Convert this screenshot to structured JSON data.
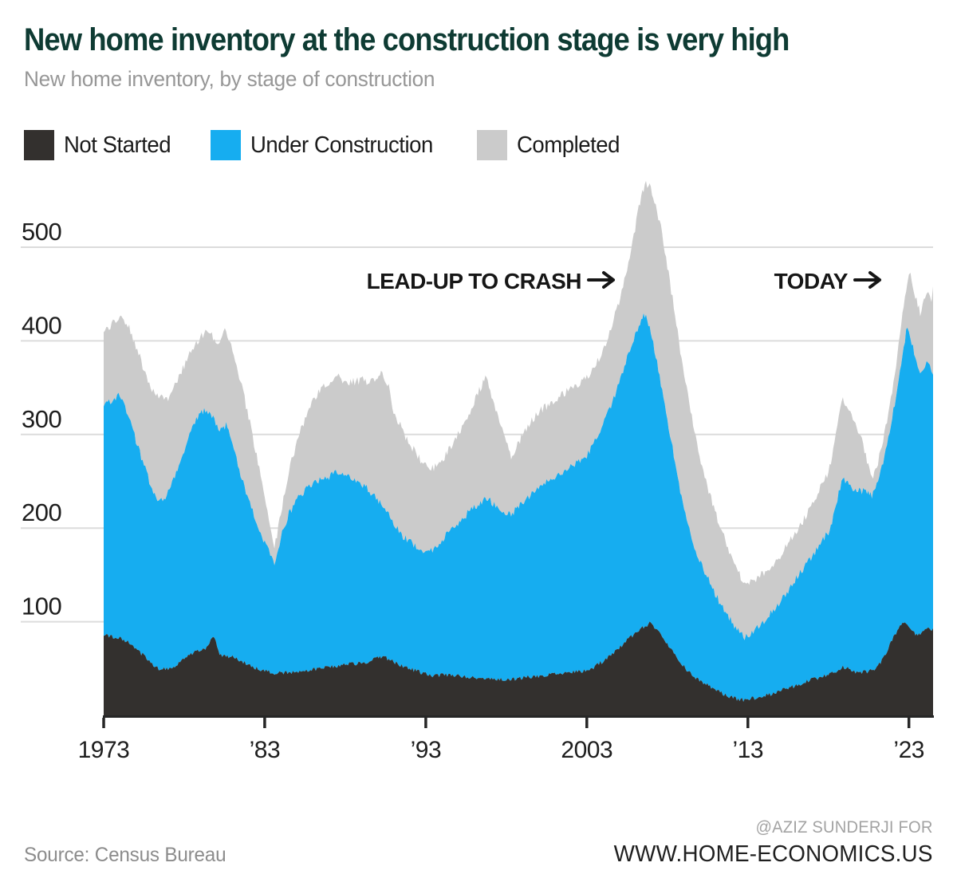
{
  "header": {
    "title": "New home inventory at the construction stage is very high",
    "subtitle": "New home inventory, by stage of construction"
  },
  "legend": [
    {
      "label": "Not Started",
      "color": "#33302E"
    },
    {
      "label": "Under Construction",
      "color": "#16ADF0"
    },
    {
      "label": "Completed",
      "color": "#CBCBCB"
    }
  ],
  "annotations": [
    {
      "text": "LEAD-UP TO CRASH",
      "icon": "arrow-right"
    },
    {
      "text": "TODAY",
      "icon": "arrow-right"
    }
  ],
  "footer": {
    "source": "Source: Census Bureau",
    "credit_line1": "@AZIZ SUNDERJI FOR",
    "credit_line2": "WWW.HOME-ECONOMICS.US"
  },
  "chart_data": {
    "type": "area",
    "stacked": true,
    "title": "New home inventory, by stage of construction",
    "xlabel": "",
    "ylabel": "",
    "unit": "thousands of homes",
    "x_range": [
      1973,
      2024.5
    ],
    "ylim": [
      0,
      575
    ],
    "grid": true,
    "legend_position": "top-left",
    "yticks": [
      100,
      200,
      300,
      400,
      500
    ],
    "xticks": [
      {
        "year": 1973,
        "label": "1973"
      },
      {
        "year": 1983,
        "label": "’83"
      },
      {
        "year": 1993,
        "label": "’93"
      },
      {
        "year": 2003,
        "label": "2003"
      },
      {
        "year": 2013,
        "label": "’13"
      },
      {
        "year": 2023,
        "label": "’23"
      }
    ],
    "series_names": [
      "Not Started",
      "Under Construction",
      "Completed"
    ],
    "colors": {
      "not_started": "#33302E",
      "under_construction": "#16ADF0",
      "completed": "#CBCBCB",
      "gridline": "#DCDCDC",
      "axis": "#262626"
    },
    "monthly_noise": {
      "not_started": 2.2,
      "under_construction": 4.0,
      "completed": 4.5
    },
    "points_format": [
      "year",
      "not_started",
      "under_construction",
      "completed"
    ],
    "points": [
      [
        1973.0,
        85,
        245,
        79
      ],
      [
        1973.5,
        84,
        252,
        82
      ],
      [
        1974.0,
        82,
        262,
        84
      ],
      [
        1974.5,
        78,
        245,
        95
      ],
      [
        1975.0,
        70,
        224,
        100
      ],
      [
        1975.5,
        64,
        203,
        103
      ],
      [
        1976.0,
        55,
        187,
        105
      ],
      [
        1976.5,
        49,
        179,
        110
      ],
      [
        1977.0,
        50,
        188,
        102
      ],
      [
        1977.5,
        54,
        206,
        96
      ],
      [
        1978.0,
        60,
        224,
        90
      ],
      [
        1978.5,
        66,
        241,
        84
      ],
      [
        1979.0,
        70,
        253,
        81
      ],
      [
        1979.4,
        72,
        255,
        84
      ],
      [
        1979.8,
        85,
        233,
        86
      ],
      [
        1980.2,
        66,
        239,
        93
      ],
      [
        1980.6,
        62,
        248,
        102
      ],
      [
        1981.0,
        64,
        224,
        103
      ],
      [
        1981.5,
        58,
        200,
        98
      ],
      [
        1982.0,
        54,
        177,
        88
      ],
      [
        1982.5,
        50,
        155,
        72
      ],
      [
        1983.0,
        47,
        136,
        48
      ],
      [
        1983.6,
        45,
        119,
        13
      ],
      [
        1984.0,
        45,
        145,
        26
      ],
      [
        1984.5,
        46,
        169,
        46
      ],
      [
        1985.0,
        46,
        185,
        62
      ],
      [
        1985.5,
        47,
        194,
        76
      ],
      [
        1986.0,
        49,
        199,
        89
      ],
      [
        1986.5,
        50,
        202,
        97
      ],
      [
        1987.0,
        52,
        203,
        101
      ],
      [
        1987.5,
        53,
        206,
        103
      ],
      [
        1988.0,
        54,
        202,
        100
      ],
      [
        1988.5,
        55,
        198,
        103
      ],
      [
        1989.0,
        56,
        192,
        110
      ],
      [
        1989.5,
        58,
        182,
        117
      ],
      [
        1990.0,
        62,
        169,
        131
      ],
      [
        1990.3,
        63,
        162,
        143
      ],
      [
        1990.7,
        60,
        155,
        135
      ],
      [
        1991.0,
        57,
        147,
        122
      ],
      [
        1991.5,
        53,
        140,
        113
      ],
      [
        1992.0,
        50,
        136,
        104
      ],
      [
        1992.5,
        47,
        133,
        97
      ],
      [
        1993.0,
        44,
        130,
        92
      ],
      [
        1993.5,
        42,
        135,
        87
      ],
      [
        1994.0,
        43,
        144,
        84
      ],
      [
        1994.5,
        43,
        154,
        88
      ],
      [
        1995.0,
        42,
        163,
        95
      ],
      [
        1995.5,
        41,
        173,
        103
      ],
      [
        1996.0,
        40,
        182,
        112
      ],
      [
        1996.4,
        40,
        188,
        122
      ],
      [
        1996.7,
        40,
        192,
        131
      ],
      [
        1997.0,
        39,
        190,
        116
      ],
      [
        1997.5,
        38,
        185,
        96
      ],
      [
        1998.0,
        38,
        179,
        76
      ],
      [
        1998.3,
        38,
        177,
        62
      ],
      [
        1998.7,
        39,
        183,
        66
      ],
      [
        1999.0,
        40,
        188,
        71
      ],
      [
        1999.5,
        41,
        195,
        77
      ],
      [
        2000.0,
        42,
        202,
        80
      ],
      [
        2000.5,
        43,
        206,
        81
      ],
      [
        2001.0,
        44,
        210,
        82
      ],
      [
        2001.5,
        45,
        214,
        84
      ],
      [
        2002.0,
        46,
        219,
        84
      ],
      [
        2002.5,
        47,
        225,
        83
      ],
      [
        2003.0,
        48,
        230,
        82
      ],
      [
        2003.5,
        52,
        240,
        80
      ],
      [
        2004.0,
        58,
        252,
        80
      ],
      [
        2004.5,
        64,
        266,
        82
      ],
      [
        2005.0,
        72,
        283,
        87
      ],
      [
        2005.5,
        80,
        302,
        96
      ],
      [
        2006.0,
        88,
        317,
        115
      ],
      [
        2006.3,
        92,
        328,
        128
      ],
      [
        2006.6,
        95,
        333,
        140
      ],
      [
        2006.9,
        98,
        317,
        151
      ],
      [
        2007.2,
        94,
        296,
        158
      ],
      [
        2007.6,
        86,
        269,
        167
      ],
      [
        2008.0,
        75,
        240,
        165
      ],
      [
        2008.4,
        66,
        212,
        158
      ],
      [
        2008.8,
        57,
        183,
        150
      ],
      [
        2009.2,
        49,
        161,
        138
      ],
      [
        2009.6,
        43,
        142,
        125
      ],
      [
        2010.0,
        37,
        128,
        111
      ],
      [
        2010.4,
        33,
        117,
        100
      ],
      [
        2010.8,
        29,
        107,
        90
      ],
      [
        2011.2,
        25,
        97,
        82
      ],
      [
        2011.6,
        22,
        90,
        74
      ],
      [
        2012.0,
        19,
        81,
        68
      ],
      [
        2012.4,
        17,
        73,
        62
      ],
      [
        2012.8,
        16,
        68,
        58
      ],
      [
        2013.0,
        17,
        66,
        57
      ],
      [
        2013.5,
        19,
        73,
        54
      ],
      [
        2014.0,
        21,
        80,
        51
      ],
      [
        2014.5,
        23,
        88,
        50
      ],
      [
        2015.0,
        26,
        95,
        50
      ],
      [
        2015.5,
        29,
        104,
        50
      ],
      [
        2016.0,
        32,
        114,
        50
      ],
      [
        2016.5,
        35,
        123,
        52
      ],
      [
        2017.0,
        38,
        132,
        56
      ],
      [
        2017.5,
        41,
        142,
        60
      ],
      [
        2018.0,
        44,
        152,
        64
      ],
      [
        2018.3,
        46,
        166,
        72
      ],
      [
        2018.9,
        52,
        203,
        85
      ],
      [
        2019.2,
        50,
        198,
        79
      ],
      [
        2019.6,
        47,
        195,
        73
      ],
      [
        2020.0,
        46,
        194,
        60
      ],
      [
        2020.4,
        47,
        191,
        34
      ],
      [
        2020.7,
        48,
        187,
        18
      ],
      [
        2021.0,
        52,
        196,
        18
      ],
      [
        2021.4,
        60,
        212,
        20
      ],
      [
        2021.8,
        75,
        230,
        25
      ],
      [
        2022.2,
        88,
        252,
        32
      ],
      [
        2022.6,
        99,
        286,
        45
      ],
      [
        2022.9,
        97,
        321,
        47
      ],
      [
        2023.1,
        93,
        312,
        65
      ],
      [
        2023.4,
        87,
        293,
        66
      ],
      [
        2023.7,
        86,
        276,
        68
      ],
      [
        2024.0,
        90,
        282,
        76
      ],
      [
        2024.2,
        93,
        285,
        77
      ],
      [
        2024.4,
        92,
        276,
        78
      ],
      [
        2024.5,
        93,
        271,
        94
      ]
    ]
  }
}
